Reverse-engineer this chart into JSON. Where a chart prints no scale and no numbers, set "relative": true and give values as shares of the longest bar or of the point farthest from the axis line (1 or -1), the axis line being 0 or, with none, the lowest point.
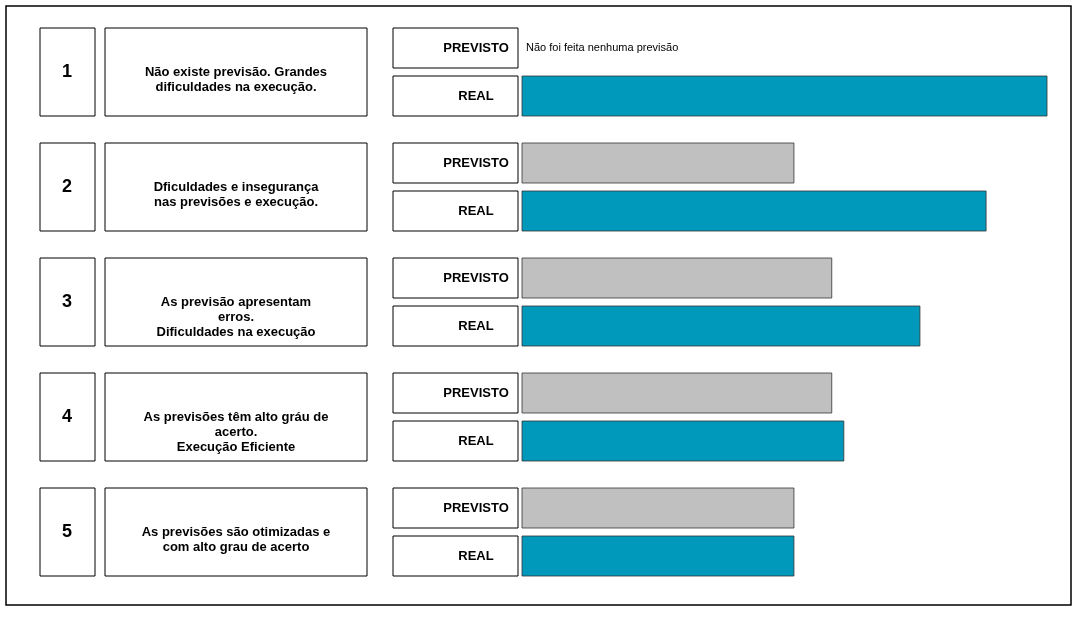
{
  "chart_data": {
    "type": "bar",
    "orientation": "horizontal",
    "relative": true,
    "categories": [
      "Não existe previsão. Grandes\ndificuldades na execução.",
      "Dficuldades e insegurança\nnas previsões e execução.",
      "As previsão apresentam\nerros.\nDificuldades na execução",
      "As previsões têm alto gráu de\nacerto.\nExecução Eficiente",
      "As previsões são otimizadas e\ncom alto grau de acerto"
    ],
    "series": [
      {
        "name": "PREVISTO",
        "color": "#c0c0c0",
        "values": [
          null,
          0.518,
          0.59,
          0.59,
          0.518
        ]
      },
      {
        "name": "REAL",
        "color": "#0099bb",
        "values": [
          1,
          0.884,
          0.758,
          0.613,
          0.518
        ]
      }
    ],
    "annotations": [
      "1",
      "2",
      "3",
      "4",
      "5",
      "Não foi feita nenhuma previsão"
    ]
  }
}
